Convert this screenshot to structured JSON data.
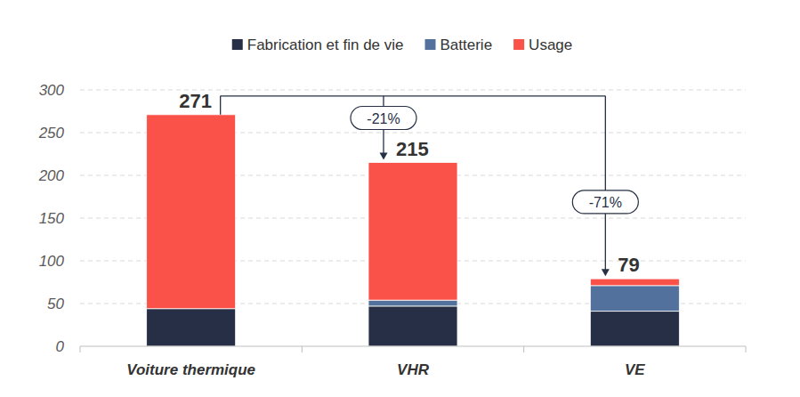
{
  "chart_data": {
    "type": "bar",
    "stacked": true,
    "categories": [
      "Voiture thermique",
      "VHR",
      "VE"
    ],
    "series": [
      {
        "name": "Fabrication et fin de vie",
        "color": "#262f45",
        "values": [
          44,
          47,
          41
        ]
      },
      {
        "name": "Batterie",
        "color": "#52719c",
        "values": [
          0,
          7,
          30
        ]
      },
      {
        "name": "Usage",
        "color": "#fa5148",
        "values": [
          227,
          161,
          8
        ]
      }
    ],
    "totals": [
      271,
      215,
      79
    ],
    "annotations": [
      {
        "text": "-21%",
        "from": "Voiture thermique",
        "to": "VHR"
      },
      {
        "text": "-71%",
        "from": "Voiture thermique",
        "to": "VE"
      }
    ],
    "ylim": [
      0,
      300
    ],
    "yticks": [
      0,
      50,
      100,
      150,
      200,
      250,
      300
    ],
    "grid": true,
    "legend": "top"
  }
}
